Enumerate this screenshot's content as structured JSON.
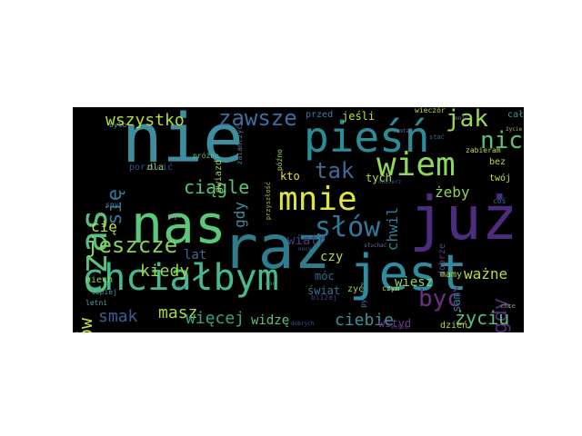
{
  "words": [
    {
      "text": "nie",
      "color": "#3d8fa0"
    },
    {
      "text": "raz",
      "color": "#2f7d8c"
    },
    {
      "text": "nas",
      "color": "#5ac87a"
    },
    {
      "text": "już",
      "color": "#4b2c7e"
    },
    {
      "text": "jest",
      "color": "#2e8ea0"
    },
    {
      "text": "pieśń",
      "color": "#2a8e9a"
    },
    {
      "text": "chciałbym",
      "color": "#47b890"
    },
    {
      "text": "czas",
      "color": "#58c27e"
    },
    {
      "text": "mnie",
      "color": "#dfe33a"
    },
    {
      "text": "wiem",
      "color": "#8fd65a"
    },
    {
      "text": "słów",
      "color": "#30789a"
    },
    {
      "text": "zawsze",
      "color": "#3a6fa0"
    },
    {
      "text": "jeszcze",
      "color": "#88d05c"
    },
    {
      "text": "wszystko",
      "color": "#b5dd3b"
    },
    {
      "text": "jak",
      "color": "#9ed752"
    },
    {
      "text": "nic",
      "color": "#5cc27a"
    },
    {
      "text": "tak",
      "color": "#3f6b95"
    },
    {
      "text": "ciągle",
      "color": "#56c57a"
    },
    {
      "text": "się",
      "color": "#2e7c94"
    },
    {
      "text": "być",
      "color": "#6a2f7e"
    },
    {
      "text": "nigdy",
      "color": "#5a2c78"
    },
    {
      "text": "znów",
      "color": "#c6dd3e"
    },
    {
      "text": "smak",
      "color": "#3b5e92"
    },
    {
      "text": "masz",
      "color": "#a5d84c"
    },
    {
      "text": "więcej",
      "color": "#3aa28a"
    },
    {
      "text": "życiu",
      "color": "#5ac07c"
    },
    {
      "text": "ciebie",
      "color": "#3f8f9a"
    },
    {
      "text": "kiedy",
      "color": "#9bd553"
    },
    {
      "text": "gdy",
      "color": "#3d8ea0"
    },
    {
      "text": "kto",
      "color": "#e9e32f"
    },
    {
      "text": "cię",
      "color": "#bedd43"
    },
    {
      "text": "lat",
      "color": "#3a6b93"
    },
    {
      "text": "ważne",
      "color": "#b9dc40"
    },
    {
      "text": "żeby",
      "color": "#8bd35c"
    },
    {
      "text": "czy",
      "color": "#b0d94a"
    },
    {
      "text": "wiatr",
      "color": "#4b3a82"
    },
    {
      "text": "chwil",
      "color": "#2f7e96"
    },
    {
      "text": "wiesz",
      "color": "#8fd45a"
    },
    {
      "text": "tych",
      "color": "#b8dc45"
    },
    {
      "text": "świat",
      "color": "#33768f"
    },
    {
      "text": "widzę",
      "color": "#5dc27a"
    },
    {
      "text": "móc",
      "color": "#2e6f8e"
    },
    {
      "text": "wstyd",
      "color": "#6a3a84"
    },
    {
      "text": "jeśli",
      "color": "#c4df3f"
    },
    {
      "text": "przed",
      "color": "#3b7da0"
    },
    {
      "text": "cały",
      "color": "#4a8fa0"
    },
    {
      "text": "bez",
      "color": "#b0d94a"
    },
    {
      "text": "twój",
      "color": "#c7df3d"
    },
    {
      "text": "sam",
      "color": "#2f7796"
    },
    {
      "text": "dobrze",
      "color": "#5b3d8a"
    },
    {
      "text": "dzień",
      "color": "#b7db45"
    },
    {
      "text": "mamy",
      "color": "#a6d64e"
    },
    {
      "text": "porzucić",
      "color": "#3b4f8f"
    },
    {
      "text": "dla",
      "color": "#8ecf5e"
    },
    {
      "text": "gwiazd",
      "color": "#9ed25a"
    },
    {
      "text": "późno",
      "color": "#a5d54e"
    },
    {
      "text": "wieczór",
      "color": "#b8dc45"
    },
    {
      "text": "niech",
      "color": "#8ed25c"
    },
    {
      "text": "lepiej",
      "color": "#4a8fa0"
    },
    {
      "text": "zyć",
      "color": "#8fd45a"
    },
    {
      "text": "pytasz",
      "color": "#4e7aa0"
    },
    {
      "text": "było",
      "color": "#5a8fa0"
    },
    {
      "text": "próżno",
      "color": "#5cc27a"
    },
    {
      "text": "letni",
      "color": "#5d9aa0"
    },
    {
      "text": "czym",
      "color": "#c5df42"
    },
    {
      "text": "bliżej",
      "color": "#4b3a82"
    },
    {
      "text": "zabieram",
      "color": "#b7db45"
    },
    {
      "text": "coś",
      "color": "#2e6f8e"
    },
    {
      "text": "sny",
      "color": "#4a7fa0"
    },
    {
      "text": "miłość",
      "color": "#6a3a84"
    },
    {
      "text": "zatańczyć",
      "color": "#6a6f8a"
    },
    {
      "text": "przyszłość",
      "color": "#b3c04a"
    },
    {
      "text": "dobrych",
      "color": "#3b5e92"
    },
    {
      "text": "tamtam",
      "color": "#6a6f8a"
    },
    {
      "text": "odbierz",
      "color": "#3a5f8f"
    },
    {
      "text": "stać",
      "color": "#3a6b93"
    },
    {
      "text": "chce",
      "color": "#7f9a6a"
    },
    {
      "text": "słuchać",
      "color": "#6a6f8a"
    },
    {
      "text": "jego",
      "color": "#8e8aa0"
    },
    {
      "text": "nawet",
      "color": "#4a8fa0"
    },
    {
      "text": "mnie",
      "color": "#6a6f8a"
    },
    {
      "text": "nocy",
      "color": "#3a5f8f"
    },
    {
      "text": "noc",
      "color": "#5d8a8a"
    },
    {
      "text": "życie",
      "color": "#a5b56a"
    }
  ]
}
